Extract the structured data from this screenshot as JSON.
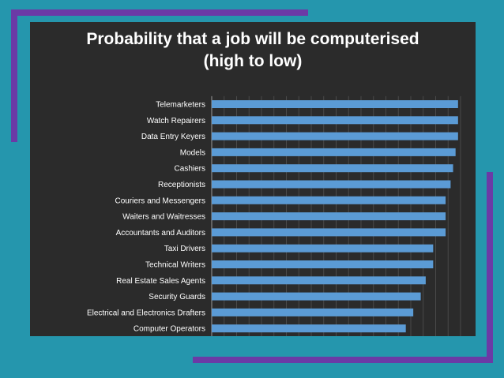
{
  "colors": {
    "background": "#2596ad",
    "accent": "#6b3aa6",
    "panel": "#2b2b2b",
    "bar": "#5b9bd5",
    "text": "#ffffff"
  },
  "chart_data": {
    "type": "bar",
    "orientation": "horizontal",
    "title_lines": [
      "Probability that a job will be computerised",
      "(high to low)"
    ],
    "categories": [
      "Telemarketers",
      "Watch Repairers",
      "Data Entry Keyers",
      "Models",
      "Cashiers",
      "Receptionists",
      "Couriers and Messengers",
      "Waiters and Waitresses",
      "Accountants and Auditors",
      "Taxi Drivers",
      "Technical Writers",
      "Real Estate Sales Agents",
      "Security Guards",
      "Electrical and Electronics Drafters",
      "Computer Operators"
    ],
    "values": [
      0.99,
      0.99,
      0.99,
      0.98,
      0.97,
      0.96,
      0.94,
      0.94,
      0.94,
      0.89,
      0.89,
      0.86,
      0.84,
      0.81,
      0.78
    ],
    "xlim": [
      0,
      1
    ],
    "grid": true,
    "legend": "none"
  }
}
